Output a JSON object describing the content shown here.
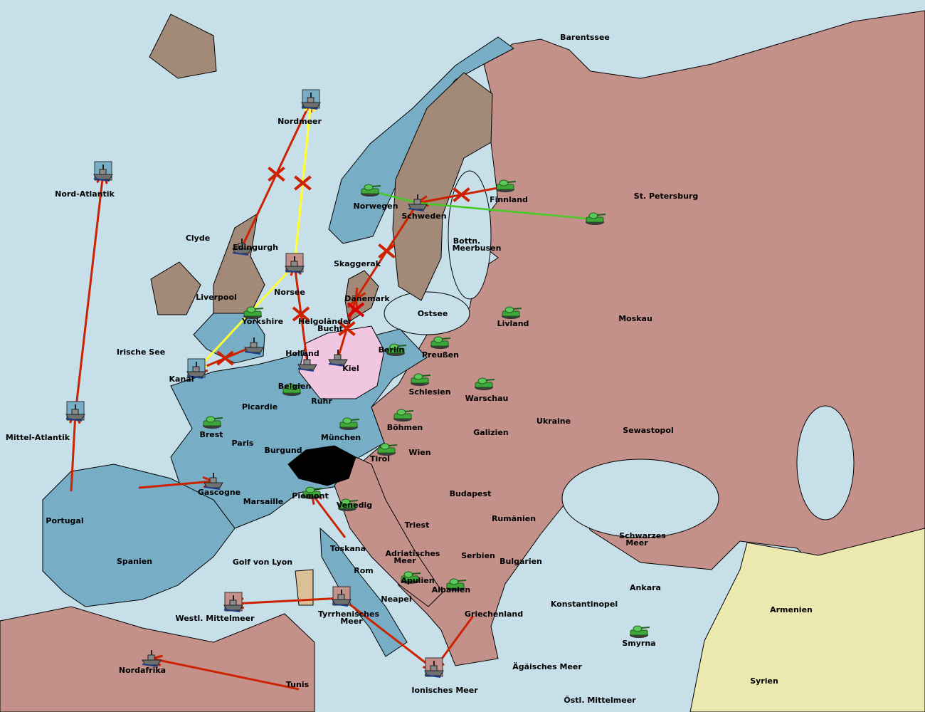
{
  "colors": {
    "sea": "#c6dfe9",
    "blue_power": "#78adc6",
    "red_power": "#c4908a",
    "brown_neutral": "#a38a78",
    "kiel_pink": "#f0c6e0",
    "yellow_neutral": "#ebe8b0",
    "switzerland": "#000000",
    "sardinia": "#dcc095",
    "move_order": "#cc2200",
    "support_order": "#ffff33",
    "convoy_order": "#44cc22"
  },
  "labels": {
    "barentssee": "Barentssee",
    "nordmeer": "Nordmeer",
    "nord_atlantik": "Nord-Atlantik",
    "finnland": "Finnland",
    "st_petersburg": "St. Petersburg",
    "norwegen": "Norwegen",
    "schweden": "Schweden",
    "bottn": "Bottn.",
    "meerbusen": "Meerbusen",
    "clyde": "Clyde",
    "edingurgh": "Edingurgh",
    "skaggerak": "Skaggerak",
    "liverpool": "Liverpool",
    "norsee": "Norsee",
    "daenemark": "Dänemark",
    "ostsee": "Ostsee",
    "livland": "Livland",
    "moskau": "Moskau",
    "helgolaender": "Helgoländer",
    "bucht": "Bucht",
    "yorkshire": "Yorkshire",
    "irische_see": "Irische See",
    "holland": "Holland",
    "kiel": "Kiel",
    "berlin": "Berlin",
    "preussen": "Preußen",
    "kanal": "Kanal",
    "belgien": "Belgien",
    "schlesien": "Schlesien",
    "warschau": "Warschau",
    "ruhr": "Ruhr",
    "picardie": "Picardie",
    "boehmen": "Böhmen",
    "galizien": "Galizien",
    "ukraine": "Ukraine",
    "sewastopol": "Sewastopol",
    "mittel_atlantik": "Mittel-Atlantik",
    "brest": "Brest",
    "muenchen": "München",
    "paris": "Paris",
    "burgund": "Burgund",
    "wien": "Wien",
    "tirol": "Tirol",
    "gascogne": "Gascogne",
    "budapest": "Budapest",
    "piemont": "Piemont",
    "marsaille": "Marsaille",
    "venedig": "Venedig",
    "portugal": "Portugal",
    "rumaenien": "Rumänien",
    "triest": "Triest",
    "schwarzes": "Schwarzes",
    "meer": "Meer",
    "spanien": "Spanien",
    "toskana": "Toskana",
    "adriatisches": "Adriatisches",
    "adria_meer": "Meer",
    "serbien": "Serbien",
    "bulgarien": "Bulgarien",
    "golf_von_lyon": "Golf von Lyon",
    "rom": "Rom",
    "apulien": "Apulien",
    "ankara": "Ankara",
    "albanien": "Albanien",
    "neapel": "Neapel",
    "konstantinopel": "Konstantinopel",
    "armenien": "Armenien",
    "tyrrhenisches": "Tyrrhenisches",
    "tyrr_meer": "Meer",
    "griechenland": "Griechenland",
    "westl_mittelmeer": "Westl. Mittelmeer",
    "smyrna": "Smyrna",
    "nordafrika": "Nordafrika",
    "aegaeisches": "Ägäisches Meer",
    "syrien": "Syrien",
    "tunis": "Tunis",
    "ionisches": "Ionisches Meer",
    "oestl_mittelmeer": "Östl. Mittelmeer"
  },
  "units": [
    {
      "type": "fleet",
      "at": "Nordmeer",
      "boxed": true,
      "owner": "blue"
    },
    {
      "type": "fleet",
      "at": "Nord-Atlantik",
      "boxed": true,
      "owner": "blue"
    },
    {
      "type": "fleet",
      "at": "Edingurgh",
      "boxed": false,
      "owner": "blue"
    },
    {
      "type": "fleet",
      "at": "Norsee",
      "boxed": true,
      "owner": "red"
    },
    {
      "type": "fleet",
      "at": "Kanal",
      "boxed": true,
      "owner": "blue"
    },
    {
      "type": "fleet",
      "at": "Mittel-Atlantik",
      "boxed": true,
      "owner": "blue"
    },
    {
      "type": "fleet",
      "at": "Gascogne",
      "boxed": false,
      "owner": "blue"
    },
    {
      "type": "fleet",
      "at": "London",
      "boxed": false,
      "owner": "blue"
    },
    {
      "type": "fleet",
      "at": "Holland",
      "boxed": false,
      "owner": "blue"
    },
    {
      "type": "fleet",
      "at": "Kiel",
      "boxed": false,
      "owner": "blue"
    },
    {
      "type": "fleet",
      "at": "Schweden",
      "boxed": false,
      "owner": "blue"
    },
    {
      "type": "fleet",
      "at": "Tyrrhenisches Meer",
      "boxed": true,
      "owner": "red"
    },
    {
      "type": "fleet",
      "at": "Westl. Mittelmeer",
      "boxed": true,
      "owner": "red"
    },
    {
      "type": "fleet",
      "at": "Ionisches Meer",
      "boxed": true,
      "owner": "red"
    },
    {
      "type": "fleet",
      "at": "Nordafrika",
      "boxed": false,
      "owner": "red"
    },
    {
      "type": "army",
      "at": "Norwegen"
    },
    {
      "type": "army",
      "at": "Finnland"
    },
    {
      "type": "army",
      "at": "St. Petersburg"
    },
    {
      "type": "army",
      "at": "Yorkshire"
    },
    {
      "type": "army",
      "at": "Livland"
    },
    {
      "type": "army",
      "at": "Berlin"
    },
    {
      "type": "army",
      "at": "Preußen"
    },
    {
      "type": "army",
      "at": "Belgien"
    },
    {
      "type": "army",
      "at": "Schlesien"
    },
    {
      "type": "army",
      "at": "Warschau"
    },
    {
      "type": "army",
      "at": "Brest"
    },
    {
      "type": "army",
      "at": "Böhmen"
    },
    {
      "type": "army",
      "at": "München"
    },
    {
      "type": "army",
      "at": "Tirol"
    },
    {
      "type": "army",
      "at": "Piemont"
    },
    {
      "type": "army",
      "at": "Venedig"
    },
    {
      "type": "army",
      "at": "Apulien"
    },
    {
      "type": "army",
      "at": "Albanien"
    },
    {
      "type": "army",
      "at": "Smyrna"
    }
  ],
  "orders": [
    {
      "kind": "move",
      "from": "Edingurgh",
      "to": "Nordmeer",
      "failed": true
    },
    {
      "kind": "support",
      "from": "Nordmeer",
      "to": "Norsee",
      "failed": true
    },
    {
      "kind": "support",
      "from": "Norsee",
      "to": "Nordmeer",
      "failed": true
    },
    {
      "kind": "move",
      "from": "Mittel-Atlantik",
      "to": "Nord-Atlantik",
      "failed": false
    },
    {
      "kind": "move",
      "from": "Portugal",
      "to": "Mittel-Atlantik",
      "failed": false
    },
    {
      "kind": "move",
      "from": "Spanien",
      "to": "Gascogne",
      "failed": false
    },
    {
      "kind": "move",
      "from": "London",
      "to": "Kanal",
      "failed": true
    },
    {
      "kind": "support",
      "from": "Norsee",
      "to": "Kanal",
      "failed": false
    },
    {
      "kind": "move",
      "from": "Holland",
      "to": "Norsee",
      "failed": true
    },
    {
      "kind": "move",
      "from": "Kiel",
      "to": "Dänemark",
      "failed": true
    },
    {
      "kind": "move",
      "from": "Schweden",
      "to": "Dänemark",
      "failed": true
    },
    {
      "kind": "move",
      "from": "Finnland",
      "to": "Schweden",
      "failed": true
    },
    {
      "kind": "convoy",
      "from": "Norwegen",
      "to": "Schweden",
      "failed": false
    },
    {
      "kind": "convoy",
      "from": "St. Petersburg",
      "to": "Schweden",
      "failed": false
    },
    {
      "kind": "move",
      "from": "Toskana",
      "to": "Piemont",
      "failed": false
    },
    {
      "kind": "move",
      "from": "Tyrrhenisches Meer",
      "to": "Westl. Mittelmeer",
      "failed": false
    },
    {
      "kind": "move",
      "from": "Tunis",
      "to": "Nordafrika",
      "failed": false
    },
    {
      "kind": "move",
      "from": "Griechenland",
      "to": "Ionisches Meer",
      "failed": false
    },
    {
      "kind": "move",
      "from": "Tyrrhenisches Meer",
      "to": "Ionisches Meer",
      "failed": false
    }
  ],
  "dislodged": [
    "Dänemark"
  ]
}
